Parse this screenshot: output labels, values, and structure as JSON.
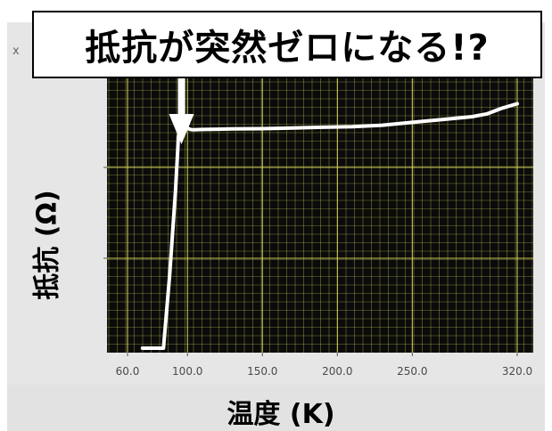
{
  "window": {
    "tab_marker": "x"
  },
  "title": "抵抗が突然ゼロになる!?",
  "chart_data": {
    "type": "line",
    "title": "抵抗が突然ゼロになる!?",
    "xlabel": "温度 (K)",
    "ylabel": "抵抗 (Ω)",
    "xlim": [
      60,
      320
    ],
    "x_ticks": [
      "60.0",
      "100.0",
      "150.0",
      "200.0",
      "250.0",
      "320.0"
    ],
    "x_tick_values": [
      60,
      100,
      150,
      200,
      250,
      320
    ],
    "y_tick_labels": [],
    "grid": true,
    "series": [
      {
        "x": [
          70,
          80,
          84,
          88,
          92,
          94,
          95,
          96,
          98,
          100,
          102,
          104,
          110,
          120,
          130,
          150,
          170,
          190,
          210,
          230,
          250,
          270,
          290,
          300,
          310,
          320
        ],
        "y": [
          0.0,
          0.0,
          0.0,
          0.25,
          0.55,
          0.74,
          0.765,
          0.77,
          0.772,
          0.77,
          0.765,
          0.764,
          0.765,
          0.766,
          0.767,
          0.768,
          0.77,
          0.773,
          0.775,
          0.78,
          0.79,
          0.8,
          0.81,
          0.82,
          0.84,
          0.855
        ]
      }
    ],
    "ylim": [
      0,
      1
    ],
    "annotation": {
      "type": "arrow",
      "points_to_x": 96,
      "label": ""
    },
    "colors": {
      "plot_background": "#0b0b0b",
      "grid": "#d8d85a",
      "line": "#ffffff",
      "arrow": "#ffffff"
    }
  }
}
